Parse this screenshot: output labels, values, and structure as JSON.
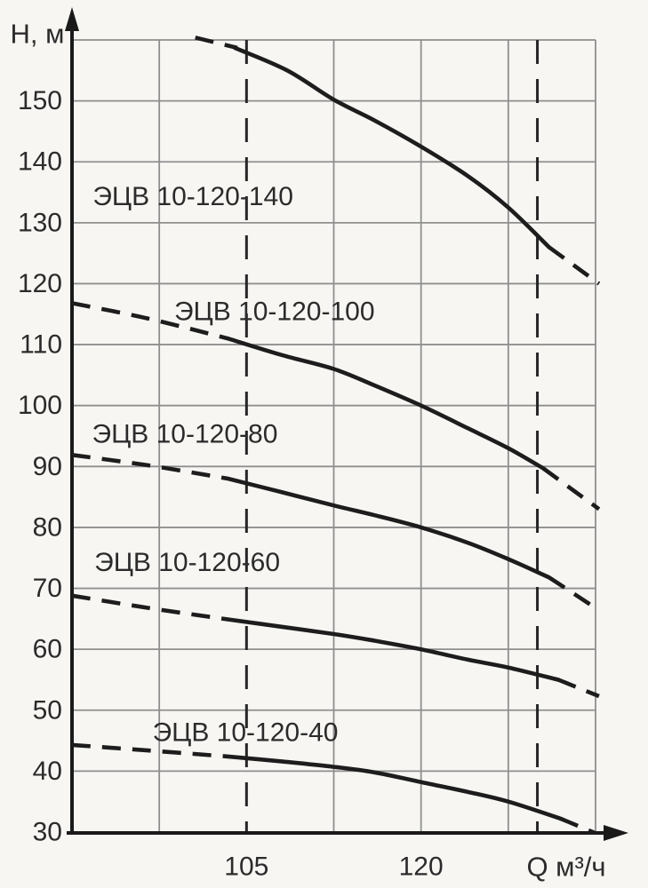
{
  "colors": {
    "background": "#f7f6f3",
    "grid": "#8f8f8f",
    "axis": "#1a1a1a",
    "curve": "#1d1d1d",
    "guide": "#262626",
    "text": "#2b2b2b"
  },
  "chart_data": {
    "type": "line",
    "title": "",
    "xlabel": "Q м³/ч",
    "ylabel": "Н, м",
    "xlim": [
      90,
      135
    ],
    "ylim": [
      30,
      160
    ],
    "grid": true,
    "x_grid_step": 7.5,
    "y_grid_step": 10,
    "x_ticks": [
      105,
      120
    ],
    "y_ticks": [
      150,
      140,
      130,
      120,
      110,
      100,
      90,
      80,
      70,
      60,
      50,
      40,
      30
    ],
    "guide_lines_x": [
      105,
      130
    ],
    "series": [
      {
        "name": "ЭЦВ 10-120-140",
        "label_anchor": {
          "q": 100.4,
          "h": 134.3
        },
        "dashed_head": [
          [
            100.6,
            160.4
          ],
          [
            104.2,
            158.7
          ]
        ],
        "solid": [
          [
            104.0,
            158.7
          ],
          [
            108.5,
            155.0
          ],
          [
            112.5,
            150.2
          ],
          [
            116.0,
            146.8
          ],
          [
            120.0,
            142.5
          ],
          [
            124.0,
            137.7
          ],
          [
            127.5,
            132.5
          ],
          [
            131.0,
            126.0
          ]
        ],
        "dashed_tail": [
          [
            131.0,
            126.0
          ],
          [
            135.3,
            120.0
          ]
        ]
      },
      {
        "name": "ЭЦВ 10-120-100",
        "label_anchor": {
          "q": 107.4,
          "h": 115.4
        },
        "dashed_head": [
          [
            90.0,
            116.8
          ],
          [
            96.5,
            114.3
          ],
          [
            103.4,
            111.0
          ]
        ],
        "solid": [
          [
            103.4,
            111.0
          ],
          [
            108.0,
            108.3
          ],
          [
            112.5,
            106.0
          ],
          [
            116.0,
            103.3
          ],
          [
            120.0,
            100.0
          ],
          [
            124.0,
            96.3
          ],
          [
            127.5,
            93.0
          ],
          [
            130.5,
            89.7
          ]
        ],
        "dashed_tail": [
          [
            130.5,
            89.7
          ],
          [
            135.3,
            83.0
          ]
        ]
      },
      {
        "name": "ЭЦВ 10-120-80",
        "label_anchor": {
          "q": 99.7,
          "h": 95.3
        },
        "dashed_head": [
          [
            90.0,
            91.9
          ],
          [
            96.5,
            90.2
          ],
          [
            103.4,
            88.0
          ]
        ],
        "solid": [
          [
            103.4,
            88.0
          ],
          [
            108.0,
            85.8
          ],
          [
            112.5,
            83.6
          ],
          [
            116.0,
            82.0
          ],
          [
            120.0,
            80.0
          ],
          [
            124.0,
            77.5
          ],
          [
            127.5,
            74.8
          ],
          [
            131.0,
            71.8
          ]
        ],
        "dashed_tail": [
          [
            131.0,
            71.8
          ],
          [
            135.3,
            66.4
          ]
        ]
      },
      {
        "name": "ЭЦВ 10-120-60",
        "label_anchor": {
          "q": 99.9,
          "h": 74.2
        },
        "dashed_head": [
          [
            90.0,
            68.8
          ],
          [
            96.5,
            66.8
          ],
          [
            103.4,
            64.9
          ]
        ],
        "solid": [
          [
            103.4,
            64.9
          ],
          [
            108.0,
            63.7
          ],
          [
            112.5,
            62.5
          ],
          [
            116.0,
            61.4
          ],
          [
            120.0,
            60.0
          ],
          [
            124.0,
            58.3
          ],
          [
            127.5,
            57.0
          ],
          [
            131.8,
            55.0
          ]
        ],
        "dashed_tail": [
          [
            131.8,
            55.0
          ],
          [
            135.3,
            52.3
          ]
        ]
      },
      {
        "name": "ЭЦВ 10-120-40",
        "label_anchor": {
          "q": 104.9,
          "h": 46.3
        },
        "dashed_head": [
          [
            90.0,
            44.3
          ],
          [
            96.5,
            43.4
          ],
          [
            103.4,
            42.4
          ]
        ],
        "solid": [
          [
            103.4,
            42.4
          ],
          [
            108.0,
            41.6
          ],
          [
            112.5,
            40.7
          ],
          [
            116.0,
            39.8
          ],
          [
            120.0,
            38.2
          ],
          [
            124.0,
            36.6
          ],
          [
            127.5,
            35.0
          ],
          [
            132.0,
            32.2
          ]
        ],
        "dashed_tail": [
          [
            132.0,
            32.2
          ],
          [
            134.9,
            29.9
          ]
        ]
      }
    ]
  }
}
